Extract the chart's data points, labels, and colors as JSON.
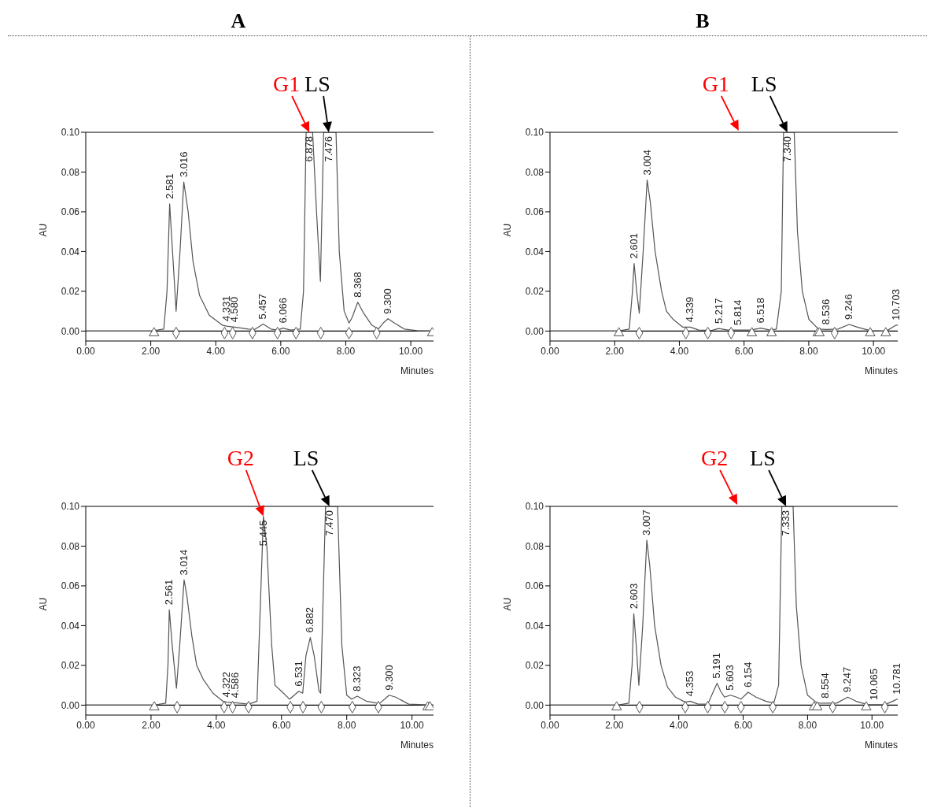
{
  "chart_data": [
    {
      "type": "line",
      "title": "A",
      "xlabel": "Minutes",
      "ylabel": "AU",
      "xlim": [
        0,
        10.7
      ],
      "ylim": [
        -0.005,
        0.1
      ],
      "xticks": [
        {
          "value": 0,
          "label": "0.00"
        },
        {
          "value": 2,
          "label": "2.00"
        },
        {
          "value": 4,
          "label": "4.00"
        },
        {
          "value": 6,
          "label": "6.00"
        },
        {
          "value": 8,
          "label": "8.00"
        },
        {
          "value": 10,
          "label": "10.00"
        }
      ],
      "yticks": [
        {
          "value": 0,
          "label": "0.00"
        },
        {
          "value": 0.02,
          "label": "0.02"
        },
        {
          "value": 0.04,
          "label": "0.04"
        },
        {
          "value": 0.06,
          "label": "0.06"
        },
        {
          "value": 0.08,
          "label": "0.08"
        },
        {
          "value": 0.1,
          "label": "0.10"
        }
      ],
      "ref_lines": [
        {
          "axis": "y",
          "value": 0,
          "color": "#000000"
        }
      ],
      "series": [
        {
          "color": "#555555",
          "x": [
            0,
            2.0,
            2.4,
            2.5,
            2.581,
            2.67,
            2.78,
            2.9,
            3.016,
            3.15,
            3.3,
            3.5,
            3.8,
            4.2,
            4.331,
            4.58,
            5.0,
            5.2,
            5.457,
            5.7,
            5.9,
            6.066,
            6.3,
            6.6,
            6.7,
            6.78,
            6.878,
            6.98,
            7.1,
            7.22,
            7.32,
            7.476,
            7.7,
            7.8,
            7.95,
            8.1,
            8.2,
            8.368,
            8.55,
            8.8,
            9.0,
            9.15,
            9.3,
            9.5,
            9.8,
            10.2,
            10.7
          ],
          "values": [
            0,
            0,
            0.001,
            0.02,
            0.064,
            0.04,
            0.01,
            0.04,
            0.075,
            0.06,
            0.035,
            0.018,
            0.008,
            0.003,
            0.0025,
            0.002,
            0.001,
            0.0008,
            0.0035,
            0.001,
            0.0005,
            0.0015,
            0.0005,
            0.001,
            0.02,
            0.1,
            0.1,
            0.1,
            0.06,
            0.025,
            0.1,
            0.1,
            0.1,
            0.04,
            0.01,
            0.004,
            0.007,
            0.0145,
            0.009,
            0.003,
            0.001,
            0.004,
            0.0062,
            0.004,
            0.001,
            0.0002,
            0
          ]
        },
        {
          "type": "scatter",
          "marker": "diamond",
          "color": "#555555",
          "x": [
            2.78,
            4.27,
            4.52,
            5.13,
            5.9,
            6.47,
            7.23,
            8.1,
            8.95
          ],
          "values": [
            -0.001,
            -0.001,
            -0.001,
            -0.001,
            -0.001,
            -0.001,
            -0.001,
            -0.001,
            -0.001
          ]
        },
        {
          "type": "scatter",
          "marker": "triangle",
          "color": "#555555",
          "x": [
            2.1,
            10.66
          ],
          "values": [
            -0.001,
            -0.001
          ]
        }
      ],
      "annotations": [
        {
          "text": "2.581",
          "x": 2.581,
          "y": 0.064
        },
        {
          "text": "3.016",
          "x": 3.016,
          "y": 0.075
        },
        {
          "text": "4.331",
          "x": 4.331,
          "y": 0.0025
        },
        {
          "text": "4.580",
          "x": 4.58,
          "y": 0.002
        },
        {
          "text": "5.457",
          "x": 5.457,
          "y": 0.0035
        },
        {
          "text": "6.066",
          "x": 6.066,
          "y": 0.0015
        },
        {
          "text": "6.878",
          "x": 6.878,
          "y": 0.1
        },
        {
          "text": "7.476",
          "x": 7.476,
          "y": 0.1
        },
        {
          "text": "8.368",
          "x": 8.368,
          "y": 0.0145
        },
        {
          "text": "9.300",
          "x": 9.3,
          "y": 0.0062
        },
        {
          "text": "G1",
          "x": 6.878,
          "y": 0.1
        },
        {
          "text": "LS",
          "x": 7.476,
          "y": 0.1
        }
      ]
    },
    {
      "type": "line",
      "title": "B",
      "xlabel": "Minutes",
      "ylabel": "AU",
      "xlim": [
        0,
        10.75
      ],
      "ylim": [
        -0.005,
        0.1
      ],
      "xticks": [
        {
          "value": 0,
          "label": "0.00"
        },
        {
          "value": 2,
          "label": "2.00"
        },
        {
          "value": 4,
          "label": "4.00"
        },
        {
          "value": 6,
          "label": "6.00"
        },
        {
          "value": 8,
          "label": "8.00"
        },
        {
          "value": 10,
          "label": "10.00"
        }
      ],
      "yticks": [
        {
          "value": 0,
          "label": "0.00"
        },
        {
          "value": 0.02,
          "label": "0.02"
        },
        {
          "value": 0.04,
          "label": "0.04"
        },
        {
          "value": 0.06,
          "label": "0.06"
        },
        {
          "value": 0.08,
          "label": "0.08"
        },
        {
          "value": 0.1,
          "label": "0.10"
        }
      ],
      "ref_lines": [
        {
          "axis": "y",
          "value": 0,
          "color": "#000000"
        }
      ],
      "series": [
        {
          "color": "#555555",
          "x": [
            0,
            2.1,
            2.45,
            2.55,
            2.601,
            2.68,
            2.76,
            2.88,
            3.004,
            3.1,
            3.25,
            3.45,
            3.6,
            3.8,
            4.1,
            4.339,
            4.6,
            5.0,
            5.217,
            5.5,
            5.814,
            6.2,
            6.518,
            6.8,
            7.0,
            7.15,
            7.22,
            7.34,
            7.55,
            7.65,
            7.8,
            8.0,
            8.3,
            8.536,
            8.9,
            9.246,
            9.5,
            9.9,
            10.4,
            10.6,
            10.703,
            10.75
          ],
          "values": [
            0,
            0,
            0.001,
            0.02,
            0.034,
            0.02,
            0.009,
            0.04,
            0.076,
            0.065,
            0.04,
            0.02,
            0.01,
            0.006,
            0.002,
            0.002,
            0.0005,
            0.0003,
            0.0013,
            0.0005,
            0.0005,
            0.0005,
            0.0015,
            0.0005,
            0.001,
            0.02,
            0.1,
            0.1,
            0.1,
            0.05,
            0.02,
            0.006,
            0.001,
            0.0008,
            0.001,
            0.0033,
            0.002,
            0.0002,
            0,
            0.002,
            0.003,
            0.003
          ]
        },
        {
          "type": "scatter",
          "marker": "diamond",
          "color": "#555555",
          "x": [
            2.76,
            4.2,
            4.88,
            5.6,
            8.8
          ],
          "values": [
            -0.001,
            -0.001,
            -0.001,
            -0.001,
            -0.001
          ]
        },
        {
          "type": "scatter",
          "marker": "triangle",
          "color": "#555555",
          "x": [
            2.13,
            6.24,
            6.85,
            8.28,
            8.33,
            9.9,
            10.38
          ],
          "values": [
            -0.001,
            -0.001,
            -0.001,
            -0.001,
            -0.001,
            -0.001,
            -0.001
          ]
        }
      ],
      "annotations": [
        {
          "text": "2.601",
          "x": 2.601,
          "y": 0.034
        },
        {
          "text": "3.004",
          "x": 3.004,
          "y": 0.076
        },
        {
          "text": "4.339",
          "x": 4.339,
          "y": 0.002
        },
        {
          "text": "5.217",
          "x": 5.217,
          "y": 0.0013
        },
        {
          "text": "5.814",
          "x": 5.814,
          "y": 0.0005
        },
        {
          "text": "6.518",
          "x": 6.518,
          "y": 0.0015
        },
        {
          "text": "7.340",
          "x": 7.34,
          "y": 0.1
        },
        {
          "text": "8.536",
          "x": 8.536,
          "y": 0.0008
        },
        {
          "text": "9.246",
          "x": 9.246,
          "y": 0.0033
        },
        {
          "text": "10.703",
          "x": 10.703,
          "y": 0.003
        },
        "G1",
        {
          "text": "LS",
          "x": 7.34,
          "y": 0.1
        }
      ]
    },
    {
      "type": "line",
      "xlabel": "Minutes",
      "ylabel": "AU",
      "xlim": [
        0,
        10.66
      ],
      "ylim": [
        -0.005,
        0.1
      ],
      "xticks": [
        {
          "value": 0,
          "label": "0.00"
        },
        {
          "value": 2,
          "label": "2.00"
        },
        {
          "value": 4,
          "label": "4.00"
        },
        {
          "value": 6,
          "label": "6.00"
        },
        {
          "value": 8,
          "label": "8.00"
        },
        {
          "value": 10,
          "label": "10.00"
        }
      ],
      "yticks": [
        {
          "value": 0,
          "label": "0.00"
        },
        {
          "value": 0.02,
          "label": "0.02"
        },
        {
          "value": 0.04,
          "label": "0.04"
        },
        {
          "value": 0.06,
          "label": "0.06"
        },
        {
          "value": 0.08,
          "label": "0.08"
        },
        {
          "value": 0.1,
          "label": "0.10"
        }
      ],
      "ref_lines": [
        {
          "axis": "y",
          "value": 0,
          "color": "#000000"
        }
      ],
      "series": [
        {
          "color": "#555555",
          "x": [
            0,
            2.1,
            2.45,
            2.52,
            2.561,
            2.65,
            2.78,
            2.88,
            3.014,
            3.1,
            3.25,
            3.4,
            3.6,
            3.9,
            4.2,
            4.322,
            4.586,
            5.0,
            5.25,
            5.33,
            5.445,
            5.55,
            5.7,
            5.8,
            6.0,
            6.25,
            6.531,
            6.65,
            6.75,
            6.882,
            7.0,
            7.15,
            7.2,
            7.35,
            7.47,
            7.72,
            7.85,
            8.0,
            8.15,
            8.323,
            8.6,
            9.0,
            9.3,
            9.5,
            9.9,
            10.66
          ],
          "values": [
            0,
            0,
            0.001,
            0.02,
            0.048,
            0.03,
            0.0085,
            0.03,
            0.063,
            0.055,
            0.035,
            0.02,
            0.013,
            0.006,
            0.002,
            0.0015,
            0.0012,
            0.0005,
            0.002,
            0.04,
            0.095,
            0.08,
            0.03,
            0.01,
            0.007,
            0.003,
            0.007,
            0.006,
            0.025,
            0.034,
            0.025,
            0.007,
            0.006,
            0.1,
            0.1,
            0.1,
            0.03,
            0.005,
            0.003,
            0.0045,
            0.002,
            0.0008,
            0.005,
            0.004,
            0.0005,
            0
          ]
        },
        {
          "type": "scatter",
          "marker": "diamond",
          "color": "#555555",
          "x": [
            2.8,
            4.24,
            4.5,
            4.99,
            6.27,
            6.66,
            7.22,
            8.17,
            8.97
          ],
          "values": [
            -0.001,
            -0.001,
            -0.001,
            -0.001,
            -0.001,
            -0.001,
            -0.001,
            -0.001,
            -0.001
          ]
        },
        {
          "type": "scatter",
          "marker": "triangle",
          "color": "#555555",
          "x": [
            2.1,
            10.48,
            10.55
          ],
          "values": [
            -0.001,
            -0.001,
            -0.001
          ]
        }
      ],
      "annotations": [
        {
          "text": "2.561",
          "x": 2.561,
          "y": 0.048
        },
        {
          "text": "3.014",
          "x": 3.014,
          "y": 0.063
        },
        {
          "text": "4.322",
          "x": 4.322,
          "y": 0.0015
        },
        {
          "text": "4.586",
          "x": 4.586,
          "y": 0.0012
        },
        {
          "text": "5.445",
          "x": 5.445,
          "y": 0.095
        },
        {
          "text": "6.531",
          "x": 6.531,
          "y": 0.007
        },
        {
          "text": "6.882",
          "x": 6.882,
          "y": 0.034
        },
        {
          "text": "7.470",
          "x": 7.47,
          "y": 0.1
        },
        {
          "text": "8.323",
          "x": 8.323,
          "y": 0.0045
        },
        {
          "text": "9.300",
          "x": 9.3,
          "y": 0.005
        },
        {
          "text": "G2",
          "x": 5.445,
          "y": 0.095
        },
        {
          "text": "LS",
          "x": 7.47,
          "y": 0.1
        }
      ]
    },
    {
      "type": "line",
      "xlabel": "Minutes",
      "ylabel": "AU",
      "xlim": [
        0,
        10.8
      ],
      "ylim": [
        -0.005,
        0.1
      ],
      "xticks": [
        {
          "value": 0,
          "label": "0.00"
        },
        {
          "value": 2,
          "label": "2.00"
        },
        {
          "value": 4,
          "label": "4.00"
        },
        {
          "value": 6,
          "label": "6.00"
        },
        {
          "value": 8,
          "label": "8.00"
        },
        {
          "value": 10,
          "label": "10.00"
        }
      ],
      "yticks": [
        {
          "value": 0,
          "label": "0.00"
        },
        {
          "value": 0.02,
          "label": "0.02"
        },
        {
          "value": 0.04,
          "label": "0.04"
        },
        {
          "value": 0.06,
          "label": "0.06"
        },
        {
          "value": 0.08,
          "label": "0.08"
        },
        {
          "value": 0.1,
          "label": "0.10"
        }
      ],
      "ref_lines": [
        {
          "axis": "y",
          "value": 0,
          "color": "#000000"
        }
      ],
      "series": [
        {
          "color": "#555555",
          "x": [
            0,
            2.1,
            2.45,
            2.55,
            2.603,
            2.68,
            2.76,
            2.88,
            3.007,
            3.1,
            3.25,
            3.45,
            3.65,
            3.9,
            4.2,
            4.353,
            4.6,
            4.9,
            5.05,
            5.191,
            5.3,
            5.42,
            5.603,
            5.8,
            5.93,
            6.154,
            6.4,
            6.7,
            6.95,
            7.1,
            7.2,
            7.333,
            7.55,
            7.65,
            7.8,
            8.0,
            8.3,
            8.554,
            8.9,
            9.247,
            9.5,
            9.85,
            10.065,
            10.4,
            10.65,
            10.781,
            10.8
          ],
          "values": [
            0,
            0,
            0.001,
            0.02,
            0.046,
            0.03,
            0.01,
            0.04,
            0.083,
            0.07,
            0.04,
            0.02,
            0.009,
            0.004,
            0.0015,
            0.002,
            0.0005,
            0.0005,
            0.006,
            0.011,
            0.007,
            0.004,
            0.005,
            0.004,
            0.003,
            0.0065,
            0.004,
            0.002,
            0.001,
            0.01,
            0.1,
            0.1,
            0.1,
            0.05,
            0.02,
            0.005,
            0.001,
            0.001,
            0.001,
            0.004,
            0.002,
            0.0003,
            0.0002,
            0.0002,
            0.002,
            0.003,
            0.003
          ]
        },
        {
          "type": "scatter",
          "marker": "diamond",
          "color": "#555555",
          "x": [
            2.78,
            4.2,
            4.9,
            5.43,
            5.93,
            6.92,
            8.78,
            10.4
          ],
          "values": [
            -0.001,
            -0.001,
            -0.001,
            -0.001,
            -0.001,
            -0.001,
            -0.001,
            -0.001
          ]
        },
        {
          "type": "scatter",
          "marker": "triangle",
          "color": "#555555",
          "x": [
            2.07,
            8.2,
            8.3,
            9.82
          ],
          "values": [
            -0.001,
            -0.001,
            -0.001,
            -0.001
          ]
        }
      ],
      "annotations": [
        {
          "text": "2.603",
          "x": 2.603,
          "y": 0.046
        },
        {
          "text": "3.007",
          "x": 3.007,
          "y": 0.083
        },
        {
          "text": "4.353",
          "x": 4.353,
          "y": 0.002
        },
        {
          "text": "5.191",
          "x": 5.191,
          "y": 0.011
        },
        {
          "text": "5.603",
          "x": 5.603,
          "y": 0.005
        },
        {
          "text": "6.154",
          "x": 6.154,
          "y": 0.0065
        },
        {
          "text": "7.333",
          "x": 7.333,
          "y": 0.1
        },
        {
          "text": "8.554",
          "x": 8.554,
          "y": 0.001
        },
        {
          "text": "9.247",
          "x": 9.247,
          "y": 0.004
        },
        {
          "text": "10.065",
          "x": 10.065,
          "y": 0.0002
        },
        {
          "text": "10.781",
          "x": 10.781,
          "y": 0.003
        },
        "G2",
        {
          "text": "LS",
          "x": 7.333,
          "y": 0.1
        }
      ]
    }
  ]
}
